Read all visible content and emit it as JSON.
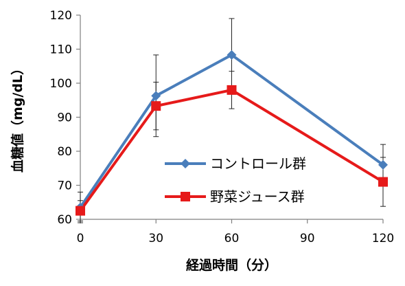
{
  "chart_data": {
    "type": "line",
    "xlabel": "経過時間（分）",
    "ylabel": "血糖値（mg/dL）",
    "x": [
      0,
      30,
      60,
      120
    ],
    "x_ticks": [
      "0",
      "30",
      "60",
      "90",
      "120"
    ],
    "x_tick_values": [
      0,
      30,
      60,
      90,
      120
    ],
    "y_ticks": [
      "60",
      "70",
      "80",
      "90",
      "100",
      "110",
      "120"
    ],
    "y_tick_values": [
      60,
      70,
      80,
      90,
      100,
      110,
      120
    ],
    "xlim": [
      0,
      120
    ],
    "ylim": [
      60,
      120
    ],
    "grid": false,
    "legend_position": "center-right",
    "series": [
      {
        "name": "コントロール群",
        "values": [
          63.5,
          96.3,
          108.3,
          76.0
        ],
        "error": [
          4.5,
          12.0,
          10.7,
          6.0
        ],
        "color": "#4A7EBB",
        "marker": "diamond"
      },
      {
        "name": "野菜ジュース群",
        "values": [
          62.5,
          93.3,
          98.0,
          71.0
        ],
        "error": [
          3.0,
          7.0,
          5.5,
          7.2
        ],
        "color": "#E61A1A",
        "marker": "square"
      }
    ]
  }
}
